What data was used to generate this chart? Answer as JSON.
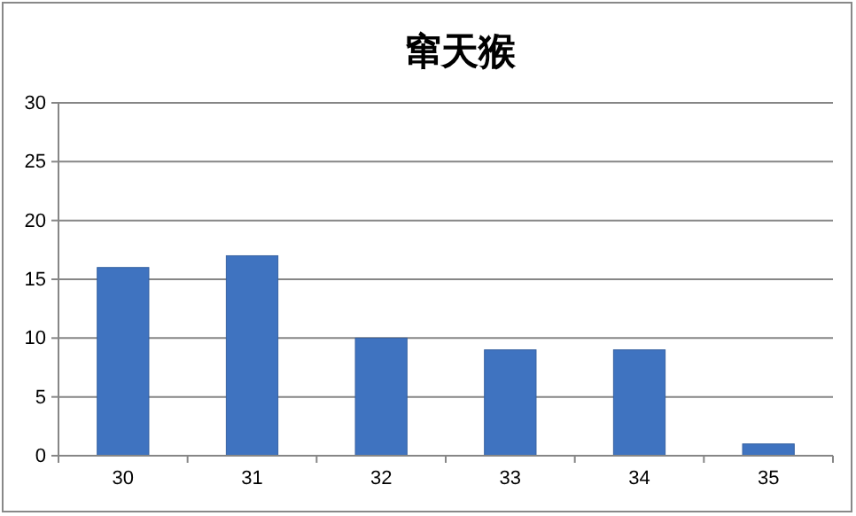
{
  "chart_data": {
    "type": "bar",
    "title": "窜天猴",
    "categories": [
      "30",
      "31",
      "32",
      "33",
      "34",
      "35"
    ],
    "values": [
      16,
      17,
      10,
      9,
      9,
      1
    ],
    "color": "#3f73c0",
    "ylim": [
      0,
      30
    ],
    "yticks": [
      0,
      5,
      10,
      15,
      20,
      25,
      30
    ],
    "grid": "y"
  }
}
